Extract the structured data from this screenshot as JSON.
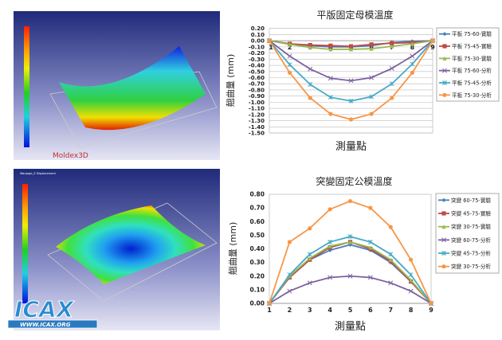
{
  "images": {
    "top": {
      "brand": "Moldex3D"
    },
    "bottom": {
      "title": "Warpage_Z Displacement",
      "watermark": "ICAX",
      "watermark_url": "WWW.ICAX.ORG"
    }
  },
  "colors": {
    "blue": "#4a7ebb",
    "red": "#be4b48",
    "green": "#98b954",
    "purple": "#7d60a0",
    "cyan": "#46aac5",
    "orange": "#f79646"
  },
  "chart_data": [
    {
      "type": "line",
      "title": "平版固定母模溫度",
      "xlabel": "測量點",
      "ylabel": "翹曲量 (mm)",
      "categories": [
        "1",
        "2",
        "3",
        "4",
        "5",
        "6",
        "7",
        "8",
        "9"
      ],
      "ylim": [
        -1.5,
        0.2
      ],
      "ytick_step": 0.1,
      "grid": true,
      "legend": "right",
      "series": [
        {
          "name": "平板 75-60-實驗",
          "color": "#4a7ebb",
          "marker": "diamond",
          "values": [
            0,
            -0.05,
            -0.08,
            -0.1,
            -0.1,
            -0.08,
            -0.03,
            -0.01,
            0
          ]
        },
        {
          "name": "平板 75-45-實驗",
          "color": "#be4b48",
          "marker": "square",
          "values": [
            0,
            -0.05,
            -0.07,
            -0.08,
            -0.09,
            -0.06,
            -0.04,
            -0.03,
            0
          ]
        },
        {
          "name": "平板 75-30-實驗",
          "color": "#98b954",
          "marker": "triangle",
          "values": [
            0,
            -0.06,
            -0.11,
            -0.14,
            -0.14,
            -0.13,
            -0.09,
            -0.05,
            0
          ]
        },
        {
          "name": "平板 75-60-分析",
          "color": "#7d60a0",
          "marker": "x",
          "values": [
            0,
            -0.25,
            -0.46,
            -0.61,
            -0.65,
            -0.6,
            -0.45,
            -0.25,
            0
          ]
        },
        {
          "name": "平板 75-45-分析",
          "color": "#46aac5",
          "marker": "star",
          "values": [
            0,
            -0.39,
            -0.71,
            -0.92,
            -0.98,
            -0.91,
            -0.7,
            -0.38,
            0
          ]
        },
        {
          "name": "平板 75-30-分析",
          "color": "#f79646",
          "marker": "circle",
          "values": [
            0,
            -0.52,
            -0.93,
            -1.19,
            -1.28,
            -1.19,
            -0.93,
            -0.52,
            0
          ]
        }
      ]
    },
    {
      "type": "line",
      "title": "突變固定公模溫度",
      "xlabel": "測量點",
      "ylabel": "翹曲量 (mm)",
      "categories": [
        "1",
        "2",
        "3",
        "4",
        "5",
        "6",
        "7",
        "8",
        "9"
      ],
      "ylim": [
        0,
        0.8
      ],
      "ytick_step": 0.1,
      "grid": false,
      "legend": "right",
      "series": [
        {
          "name": "突變 60-75-實驗",
          "color": "#4a7ebb",
          "marker": "diamond",
          "values": [
            0,
            0.19,
            0.32,
            0.39,
            0.43,
            0.39,
            0.3,
            0.16,
            0
          ]
        },
        {
          "name": "突變 45-75-實驗",
          "color": "#be4b48",
          "marker": "square",
          "values": [
            0,
            0.19,
            0.32,
            0.41,
            0.45,
            0.4,
            0.31,
            0.16,
            0
          ]
        },
        {
          "name": "突變 30-75-實驗",
          "color": "#98b954",
          "marker": "triangle",
          "values": [
            0,
            0.2,
            0.33,
            0.42,
            0.45,
            0.41,
            0.32,
            0.17,
            0
          ]
        },
        {
          "name": "突變 60-75-分析",
          "color": "#7d60a0",
          "marker": "x",
          "values": [
            0,
            0.09,
            0.15,
            0.19,
            0.2,
            0.19,
            0.15,
            0.09,
            0
          ]
        },
        {
          "name": "突變 45-75-分析",
          "color": "#46aac5",
          "marker": "star",
          "values": [
            0,
            0.21,
            0.36,
            0.45,
            0.49,
            0.45,
            0.36,
            0.21,
            0
          ]
        },
        {
          "name": "突變 30-75-分析",
          "color": "#f79646",
          "marker": "circle",
          "values": [
            0,
            0.45,
            0.55,
            0.69,
            0.75,
            0.7,
            0.56,
            0.32,
            0
          ]
        }
      ]
    }
  ]
}
